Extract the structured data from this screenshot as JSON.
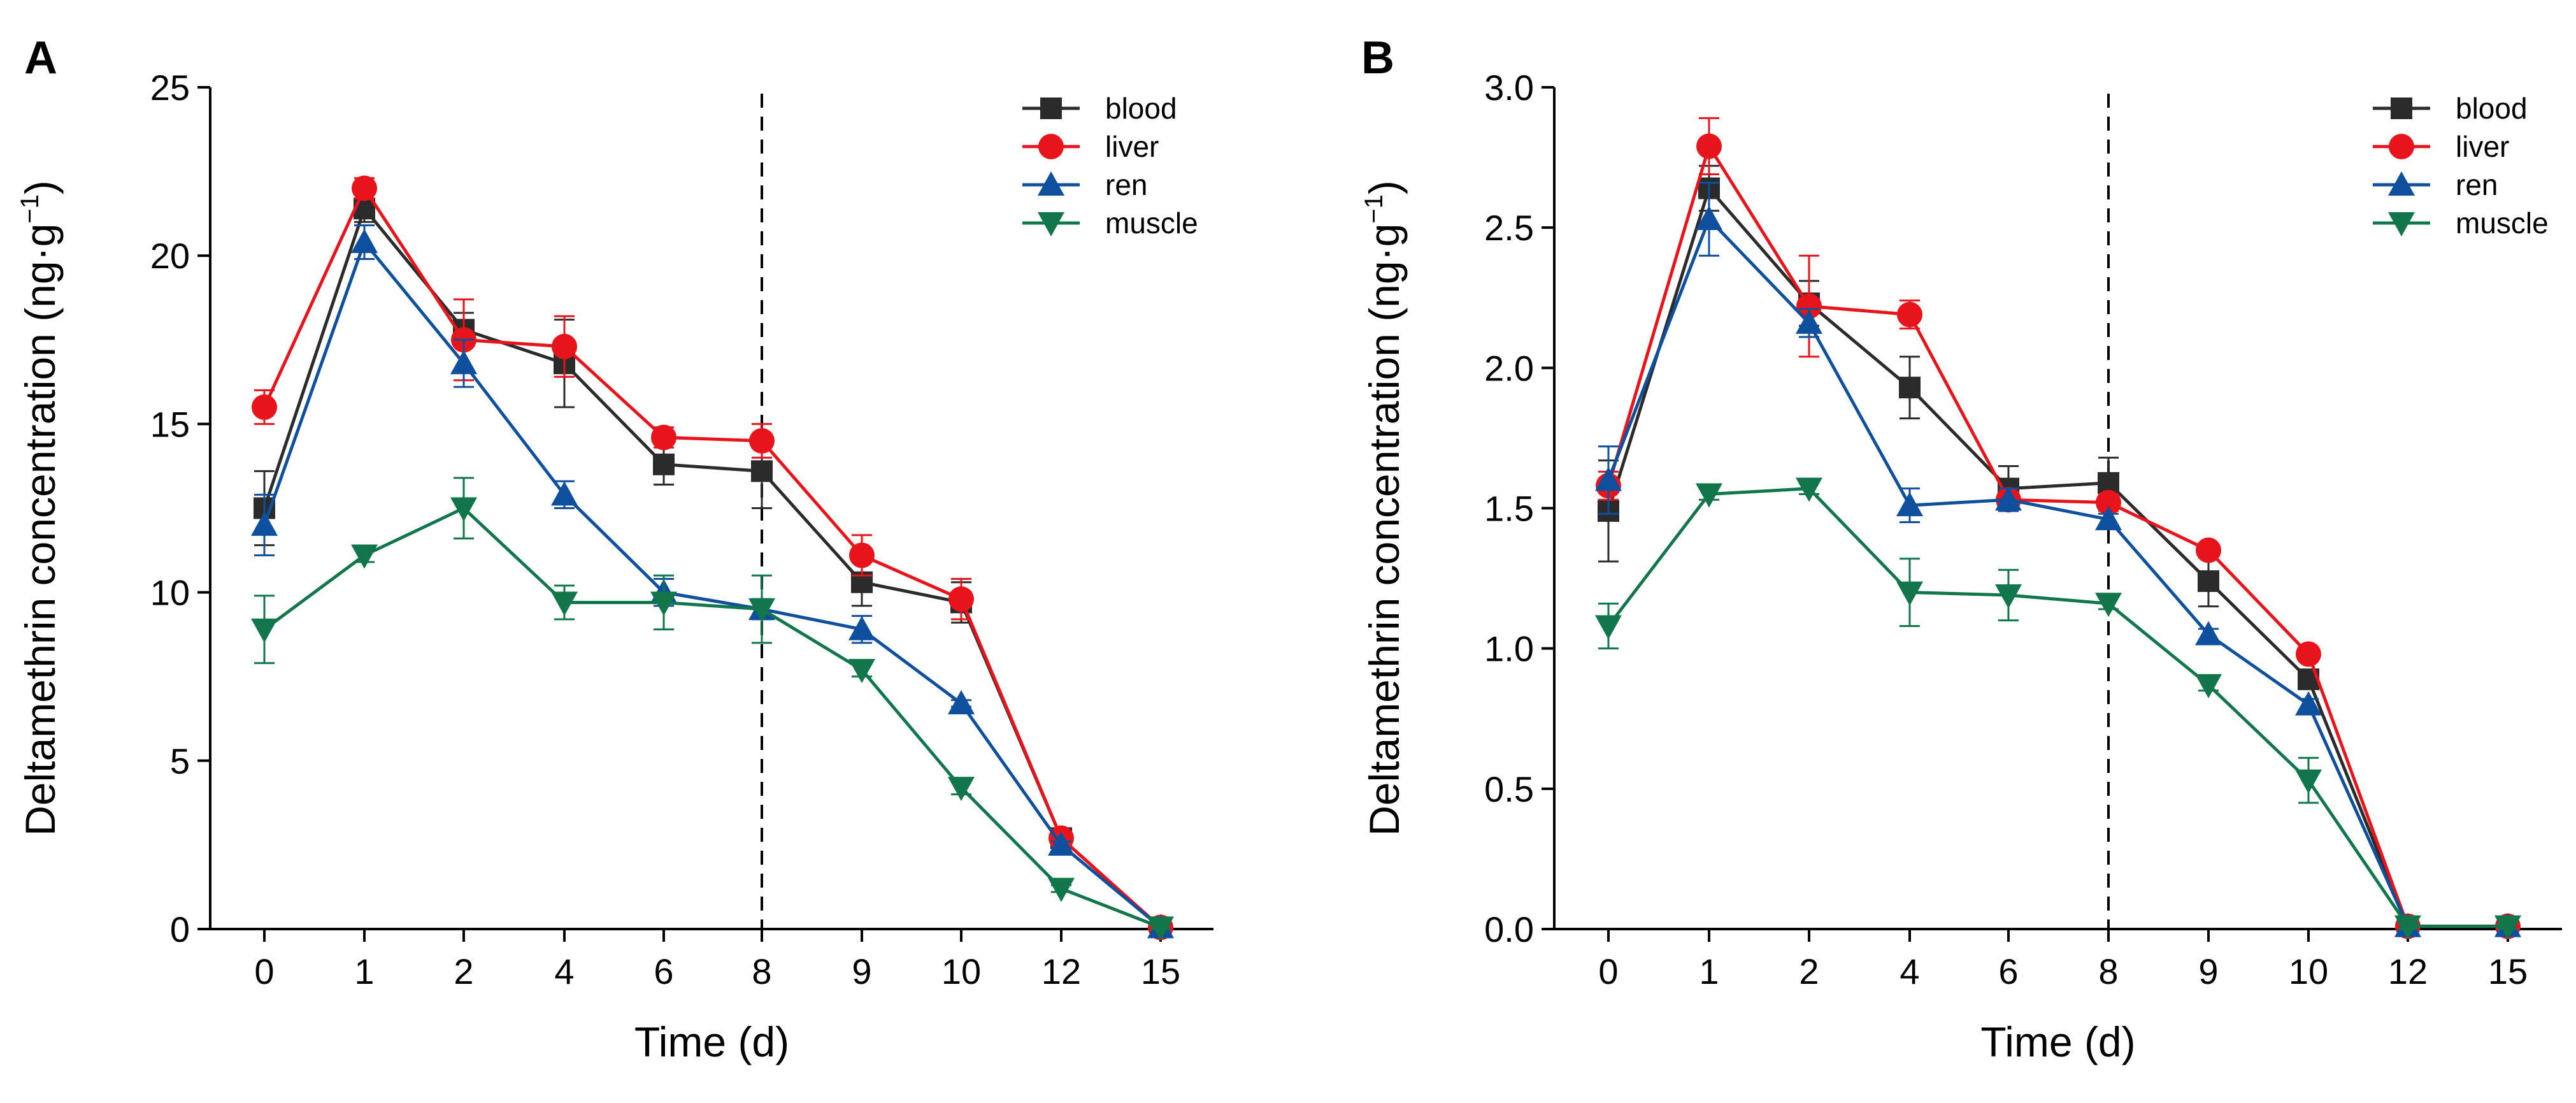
{
  "chart_data": [
    {
      "type": "line",
      "panel_label": "A",
      "xlabel": "Time (d)",
      "ylabel": "Deltamethrin concentration (ng·g",
      "ylabel_unit_exponent": "−1",
      "ylabel_close": ")",
      "categories": [
        "0",
        "1",
        "2",
        "4",
        "6",
        "8",
        "9",
        "10",
        "12",
        "15"
      ],
      "ylim": [
        0,
        25
      ],
      "yticks": [
        "0",
        "5",
        "10",
        "15",
        "20",
        "25"
      ],
      "ytick_values": [
        0,
        5,
        10,
        15,
        20,
        25
      ],
      "reference_line_at_category": "8",
      "legend_position": "top-right",
      "series": [
        {
          "name": "blood",
          "color": "#2b2b2b",
          "marker": "square",
          "values": [
            12.5,
            21.4,
            17.8,
            16.8,
            13.8,
            13.6,
            10.3,
            9.7,
            2.7,
            0.05
          ],
          "errors": [
            1.1,
            0.4,
            0.5,
            1.3,
            0.6,
            1.1,
            0.7,
            0.6,
            0.1,
            0.05
          ]
        },
        {
          "name": "liver",
          "color": "#e8141b",
          "marker": "circle",
          "values": [
            15.5,
            22.0,
            17.5,
            17.3,
            14.6,
            14.5,
            11.1,
            9.8,
            2.7,
            0.05
          ],
          "errors": [
            0.5,
            0.3,
            1.2,
            0.9,
            0.3,
            0.5,
            0.6,
            0.6,
            0.1,
            0.05
          ]
        },
        {
          "name": "ren",
          "color": "#0e4f9e",
          "marker": "triangle-up",
          "values": [
            12.0,
            20.4,
            16.8,
            12.9,
            10.0,
            9.5,
            8.9,
            6.7,
            2.5,
            0.05
          ],
          "errors": [
            0.9,
            0.5,
            0.7,
            0.4,
            0.4,
            0.3,
            0.4,
            0.1,
            0.1,
            0.05
          ]
        },
        {
          "name": "muscle",
          "color": "#11774a",
          "marker": "triangle-down",
          "values": [
            8.9,
            11.1,
            12.5,
            9.7,
            9.7,
            9.5,
            7.7,
            4.2,
            1.2,
            0.05
          ],
          "errors": [
            1.0,
            0.2,
            0.9,
            0.5,
            0.8,
            1.0,
            0.2,
            0.2,
            0.1,
            0.05
          ]
        }
      ]
    },
    {
      "type": "line",
      "panel_label": "B",
      "xlabel": "Time (d)",
      "ylabel": "Deltamethrin concentration (ng·g",
      "ylabel_unit_exponent": "−1",
      "ylabel_close": ")",
      "categories": [
        "0",
        "1",
        "2",
        "4",
        "6",
        "8",
        "9",
        "10",
        "12",
        "15"
      ],
      "ylim": [
        0,
        3.0
      ],
      "yticks": [
        "0.0",
        "0.5",
        "1.0",
        "1.5",
        "2.0",
        "2.5",
        "3.0"
      ],
      "ytick_values": [
        0,
        0.5,
        1.0,
        1.5,
        2.0,
        2.5,
        3.0
      ],
      "reference_line_at_category": "8",
      "legend_position": "top-right",
      "series": [
        {
          "name": "blood",
          "color": "#2b2b2b",
          "marker": "square",
          "values": [
            1.49,
            2.64,
            2.23,
            1.93,
            1.57,
            1.59,
            1.24,
            0.89,
            0.01,
            0.01
          ],
          "errors": [
            0.18,
            0.08,
            0.08,
            0.11,
            0.08,
            0.09,
            0.09,
            0.03,
            0.01,
            0.01
          ]
        },
        {
          "name": "liver",
          "color": "#e8141b",
          "marker": "circle",
          "values": [
            1.58,
            2.79,
            2.22,
            2.19,
            1.53,
            1.52,
            1.35,
            0.98,
            0.01,
            0.01
          ],
          "errors": [
            0.05,
            0.1,
            0.18,
            0.05,
            0.03,
            0.03,
            0.02,
            0.02,
            0.01,
            0.01
          ]
        },
        {
          "name": "ren",
          "color": "#0e4f9e",
          "marker": "triangle-up",
          "values": [
            1.6,
            2.53,
            2.16,
            1.51,
            1.53,
            1.46,
            1.05,
            0.8,
            0.01,
            0.01
          ],
          "errors": [
            0.12,
            0.13,
            0.05,
            0.06,
            0.04,
            0.02,
            0.02,
            0.02,
            0.01,
            0.01
          ]
        },
        {
          "name": "muscle",
          "color": "#11774a",
          "marker": "triangle-down",
          "values": [
            1.08,
            1.55,
            1.57,
            1.2,
            1.19,
            1.16,
            0.87,
            0.53,
            0.01,
            0.01
          ],
          "errors": [
            0.08,
            0.02,
            0.02,
            0.12,
            0.09,
            0.02,
            0.02,
            0.08,
            0.01,
            0.01
          ]
        }
      ]
    }
  ]
}
